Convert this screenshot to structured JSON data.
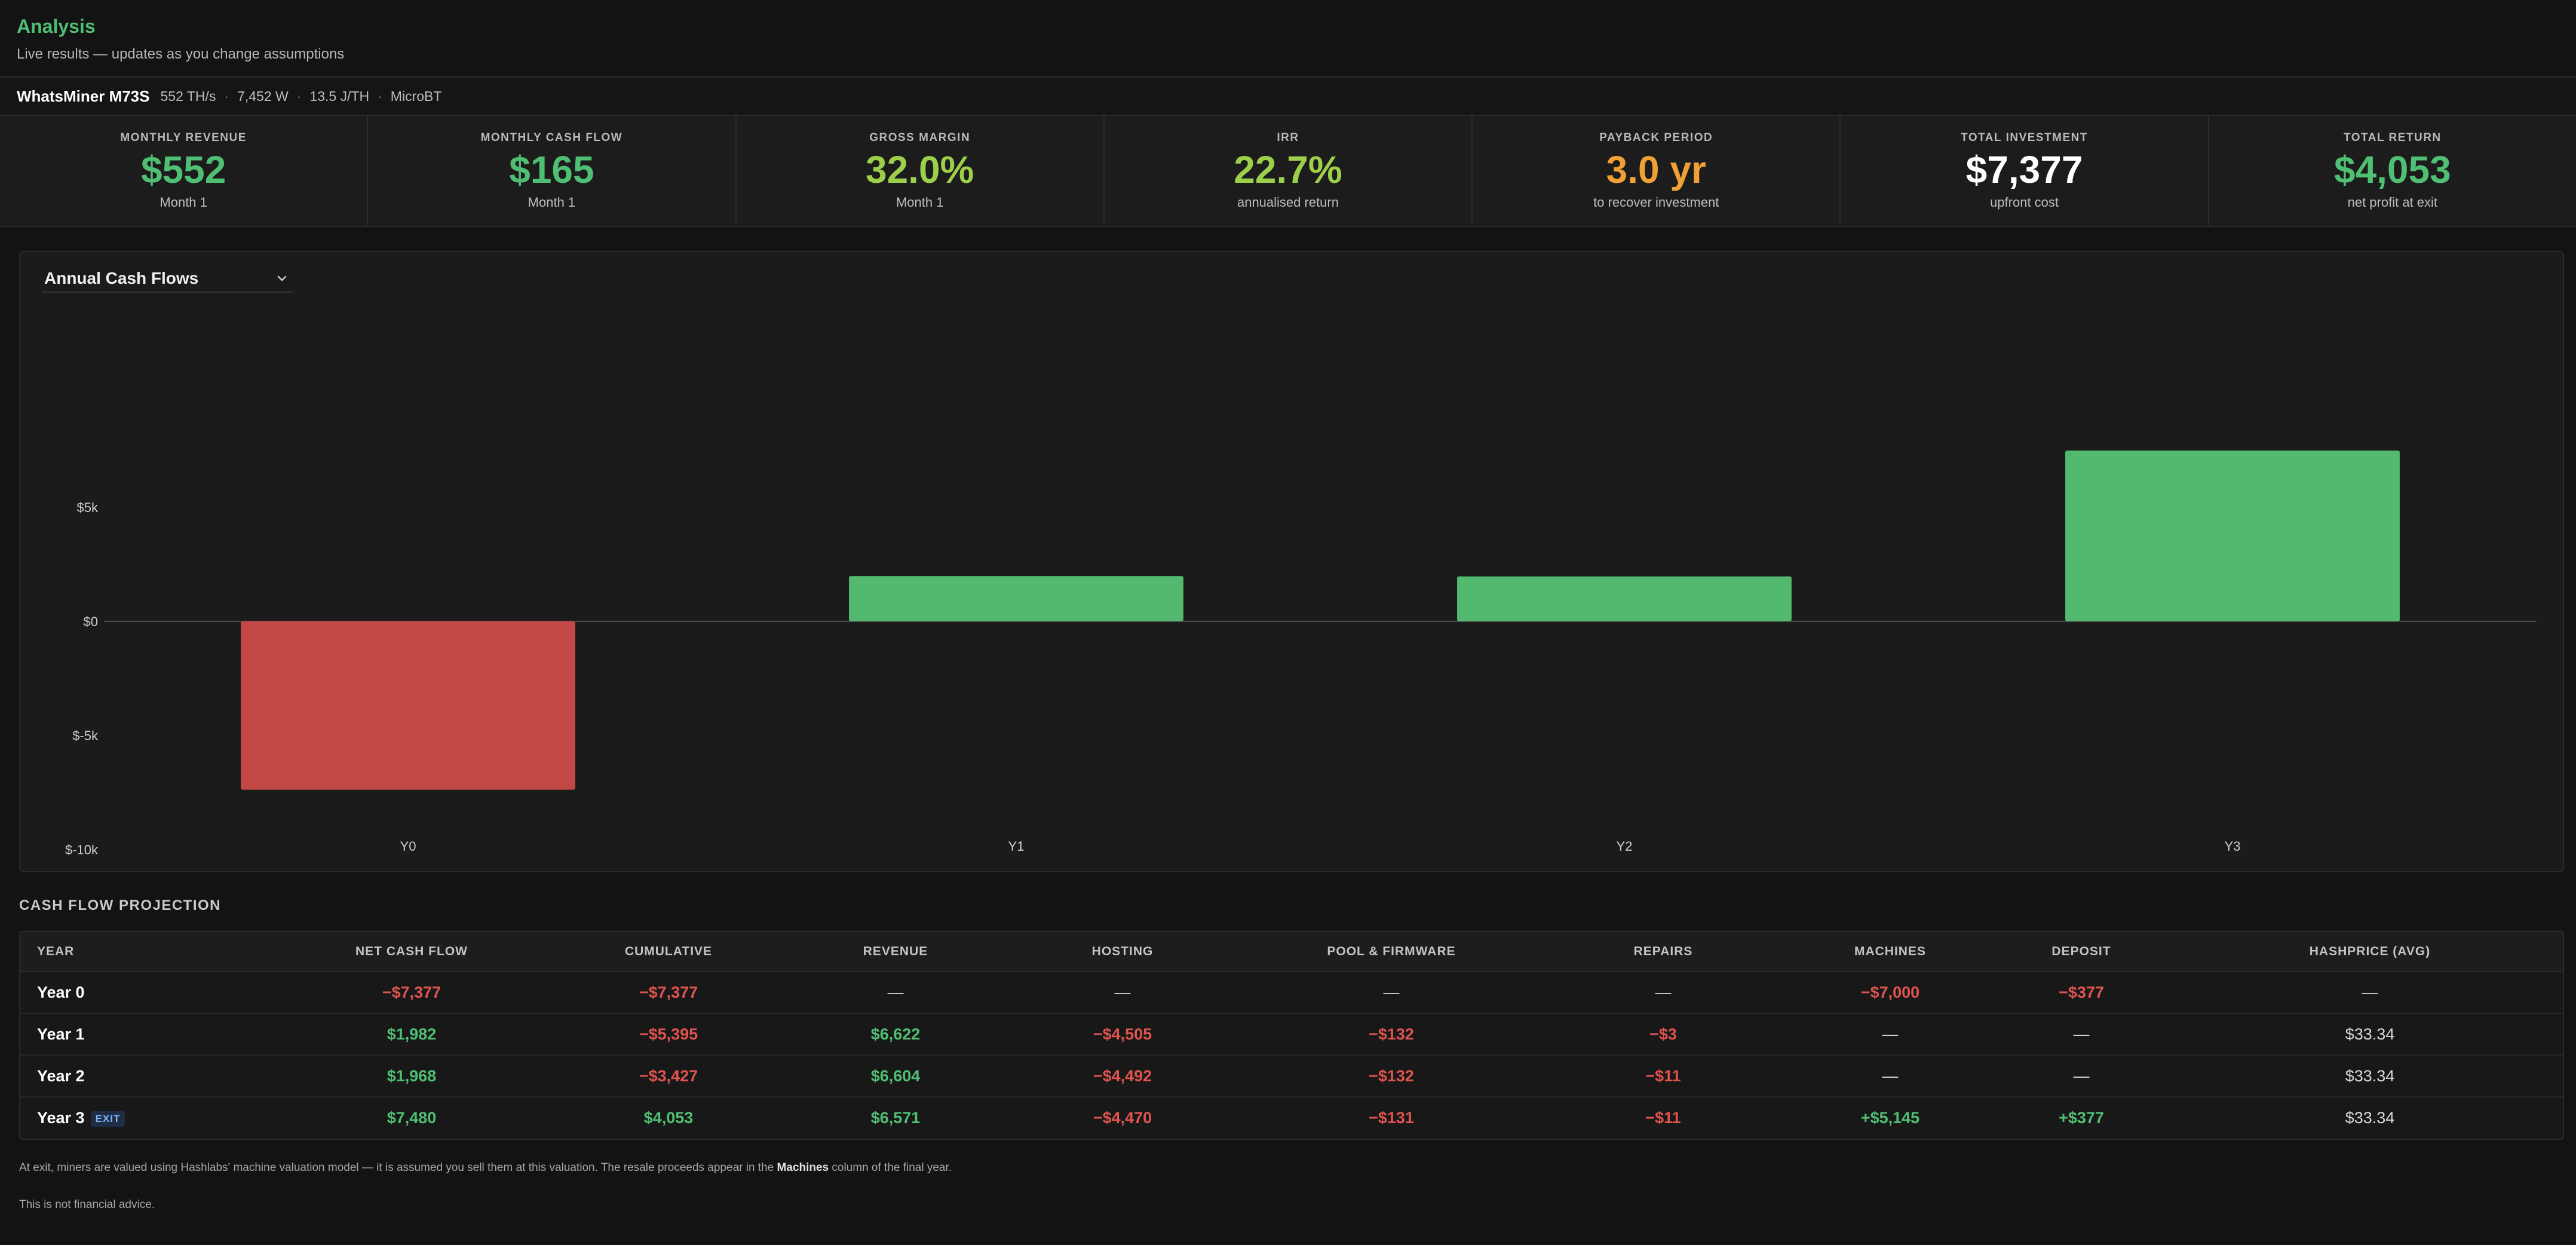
{
  "header": {
    "title": "Analysis",
    "subtitle": "Live results — updates as you change assumptions"
  },
  "model": {
    "name": "WhatsMiner M73S",
    "hashrate": "552 TH/s",
    "power": "7,452 W",
    "efficiency": "13.5 J/TH",
    "manufacturer": "MicroBT",
    "separator": "·"
  },
  "kpis": [
    {
      "label": "MONTHLY REVENUE",
      "value": "$552",
      "sub": "Month 1",
      "color": "#4fbf73"
    },
    {
      "label": "MONTHLY CASH FLOW",
      "value": "$165",
      "sub": "Month 1",
      "color": "#4fbf73"
    },
    {
      "label": "GROSS MARGIN",
      "value": "32.0%",
      "sub": "Month 1",
      "color": "#9ccf4a"
    },
    {
      "label": "IRR",
      "value": "22.7%",
      "sub": "annualised return",
      "color": "#9ccf4a"
    },
    {
      "label": "PAYBACK PERIOD",
      "value": "3.0 yr",
      "sub": "to recover investment",
      "color": "#f0a135"
    },
    {
      "label": "TOTAL INVESTMENT",
      "value": "$7,377",
      "sub": "upfront cost",
      "color": "#ffffff"
    },
    {
      "label": "TOTAL RETURN",
      "value": "$4,053",
      "sub": "net profit at exit",
      "color": "#4fbf73"
    }
  ],
  "chart_select": {
    "selected": "Annual Cash Flows",
    "icon": "chevron-down-icon"
  },
  "chart_data": {
    "type": "bar",
    "title": "",
    "xlabel": "",
    "ylabel": "",
    "categories": [
      "Y0",
      "Y1",
      "Y2",
      "Y3"
    ],
    "values": [
      -7377,
      1982,
      1968,
      7480
    ],
    "ylim": [
      -10000,
      10000
    ],
    "yticks": [
      5000,
      0,
      -5000,
      -10000
    ],
    "ytick_labels": [
      "$5k",
      "$0",
      "$-5k",
      "$-10k"
    ],
    "grid": false,
    "colors": {
      "positive": "#52b96f",
      "negative": "#c14844"
    }
  },
  "table": {
    "section_title": "CASH FLOW PROJECTION",
    "columns": [
      "YEAR",
      "NET CASH FLOW",
      "CUMULATIVE",
      "REVENUE",
      "HOSTING",
      "POOL & FIRMWARE",
      "REPAIRS",
      "MACHINES",
      "DEPOSIT",
      "HASHPRICE (AVG)"
    ],
    "exit_badge": "EXIT",
    "rows": [
      {
        "year": "Year 0",
        "exit": false,
        "cells": [
          {
            "v": "−$7,377",
            "t": "neg"
          },
          {
            "v": "−$7,377",
            "t": "neg"
          },
          {
            "v": "—",
            "t": "neu"
          },
          {
            "v": "—",
            "t": "neu"
          },
          {
            "v": "—",
            "t": "neu"
          },
          {
            "v": "—",
            "t": "neu"
          },
          {
            "v": "−$7,000",
            "t": "neg"
          },
          {
            "v": "−$377",
            "t": "neg"
          },
          {
            "v": "—",
            "t": "neu"
          }
        ]
      },
      {
        "year": "Year 1",
        "exit": false,
        "cells": [
          {
            "v": "$1,982",
            "t": "pos"
          },
          {
            "v": "−$5,395",
            "t": "neg"
          },
          {
            "v": "$6,622",
            "t": "pos"
          },
          {
            "v": "−$4,505",
            "t": "neg"
          },
          {
            "v": "−$132",
            "t": "neg"
          },
          {
            "v": "−$3",
            "t": "neg"
          },
          {
            "v": "—",
            "t": "neu"
          },
          {
            "v": "—",
            "t": "neu"
          },
          {
            "v": "$33.34",
            "t": "neu"
          }
        ]
      },
      {
        "year": "Year 2",
        "exit": false,
        "cells": [
          {
            "v": "$1,968",
            "t": "pos"
          },
          {
            "v": "−$3,427",
            "t": "neg"
          },
          {
            "v": "$6,604",
            "t": "pos"
          },
          {
            "v": "−$4,492",
            "t": "neg"
          },
          {
            "v": "−$132",
            "t": "neg"
          },
          {
            "v": "−$11",
            "t": "neg"
          },
          {
            "v": "—",
            "t": "neu"
          },
          {
            "v": "—",
            "t": "neu"
          },
          {
            "v": "$33.34",
            "t": "neu"
          }
        ]
      },
      {
        "year": "Year 3",
        "exit": true,
        "cells": [
          {
            "v": "$7,480",
            "t": "pos"
          },
          {
            "v": "$4,053",
            "t": "pos"
          },
          {
            "v": "$6,571",
            "t": "pos"
          },
          {
            "v": "−$4,470",
            "t": "neg"
          },
          {
            "v": "−$131",
            "t": "neg"
          },
          {
            "v": "−$11",
            "t": "neg"
          },
          {
            "v": "+$5,145",
            "t": "pos"
          },
          {
            "v": "+$377",
            "t": "pos"
          },
          {
            "v": "$33.34",
            "t": "neu"
          }
        ]
      }
    ]
  },
  "footnote": {
    "before": "At exit, miners are valued using Hashlabs' machine valuation model — it is assumed you sell them at this valuation. The resale proceeds appear in the ",
    "bold": "Machines",
    "after": " column of the final year."
  },
  "disclaimer": "This is not financial advice."
}
